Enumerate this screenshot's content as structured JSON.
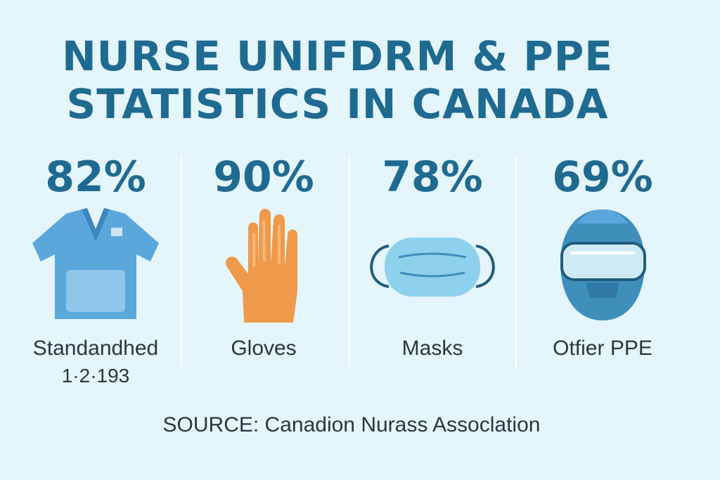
{
  "title": {
    "line1": "NURSE UNIFDRM & PPE",
    "line2": "STATISTICS IN CANADA"
  },
  "stats": [
    {
      "value": "82%",
      "label": "Standandhed",
      "sublabel": "1·2·193",
      "icon": "scrubs-icon"
    },
    {
      "value": "90%",
      "label": "Gloves",
      "icon": "glove-icon"
    },
    {
      "value": "78%",
      "label": "Masks",
      "icon": "mask-icon"
    },
    {
      "value": "69%",
      "label": "Otfier PPE",
      "icon": "face-shield-icon"
    }
  ],
  "source": "SOURCE: Canadion Nurass Assoclation",
  "colors": {
    "background": "#e4f5fb",
    "heading": "#1f6a90",
    "text": "#2a3640",
    "scrubs": "#5aa7dc",
    "glove": "#ef9a4a",
    "mask": "#8dd1ec",
    "shield": "#3f8fbd"
  }
}
